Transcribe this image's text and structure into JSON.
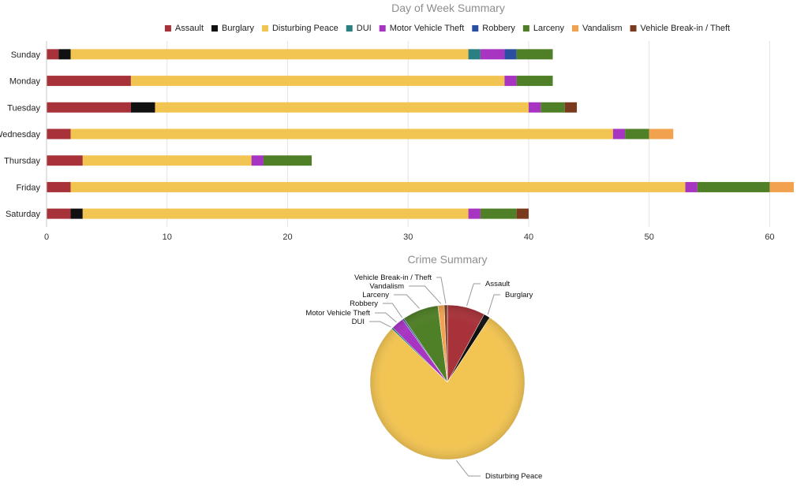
{
  "chart_data": [
    {
      "type": "bar",
      "orientation": "horizontal",
      "stacked": true,
      "title": "Day of Week Summary",
      "legend_position": "top-center",
      "grid": true,
      "xlim": [
        0,
        62
      ],
      "x_ticks": [
        "0",
        "10",
        "20",
        "30",
        "40",
        "50",
        "60"
      ],
      "categories": [
        "Sunday",
        "Monday",
        "Tuesday",
        "Wednesday",
        "Thursday",
        "Friday",
        "Saturday"
      ],
      "series": [
        {
          "name": "Assault",
          "color": "#a8323a",
          "values": [
            1,
            7,
            7,
            2,
            3,
            2,
            2
          ]
        },
        {
          "name": "Burglary",
          "color": "#111111",
          "values": [
            1,
            0,
            2,
            0,
            0,
            0,
            1
          ]
        },
        {
          "name": "Disturbing Peace",
          "color": "#f2c452",
          "values": [
            33,
            31,
            31,
            45,
            14,
            51,
            32
          ]
        },
        {
          "name": "DUI",
          "color": "#2a7f80",
          "values": [
            1,
            0,
            0,
            0,
            0,
            0,
            0
          ]
        },
        {
          "name": "Motor Vehicle Theft",
          "color": "#a834c2",
          "values": [
            2,
            1,
            1,
            1,
            1,
            1,
            1
          ]
        },
        {
          "name": "Robbery",
          "color": "#2b4f9e",
          "values": [
            1,
            0,
            0,
            0,
            0,
            0,
            0
          ]
        },
        {
          "name": "Larceny",
          "color": "#4f7f26",
          "values": [
            3,
            3,
            2,
            2,
            4,
            6,
            3
          ]
        },
        {
          "name": "Vandalism",
          "color": "#f2a24e",
          "values": [
            0,
            0,
            0,
            2,
            0,
            2,
            0
          ]
        },
        {
          "name": "Vehicle Break-in / Theft",
          "color": "#7a3a1e",
          "values": [
            0,
            0,
            1,
            0,
            0,
            0,
            1
          ]
        }
      ]
    },
    {
      "type": "pie",
      "title": "Crime Summary",
      "slices": [
        {
          "name": "Assault",
          "value": 24,
          "color": "#a8323a"
        },
        {
          "name": "Burglary",
          "value": 4,
          "color": "#111111"
        },
        {
          "name": "Disturbing Peace",
          "value": 237,
          "color": "#f2c452"
        },
        {
          "name": "DUI",
          "value": 1,
          "color": "#2a7f80"
        },
        {
          "name": "Motor Vehicle Theft",
          "value": 8,
          "color": "#a834c2"
        },
        {
          "name": "Robbery",
          "value": 1,
          "color": "#2b4f9e"
        },
        {
          "name": "Larceny",
          "value": 23,
          "color": "#4f7f26"
        },
        {
          "name": "Vandalism",
          "value": 4,
          "color": "#f2a24e"
        },
        {
          "name": "Vehicle Break-in / Theft",
          "value": 2,
          "color": "#7a3a1e"
        }
      ]
    }
  ]
}
